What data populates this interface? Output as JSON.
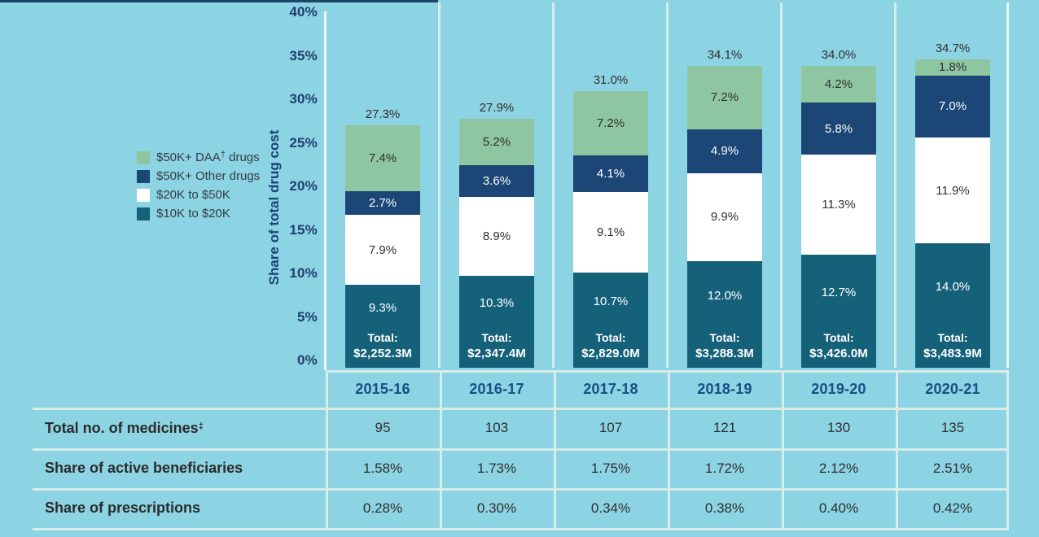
{
  "colors": {
    "background": "#8CD3E3",
    "top_strip": "#1B4566",
    "grid_line": "#D8EDEA",
    "axis_line": "#EDF6F3",
    "tick_text": "#203F6E",
    "year_text": "#175084",
    "dark_text": "#2F2F2F",
    "bar_teal": "#16617A",
    "bar_white": "#FFFFFF",
    "bar_navy": "#1B4675",
    "bar_green": "#8EC6A1"
  },
  "chart_data": {
    "type": "bar",
    "stacked": true,
    "title": "",
    "xlabel": "",
    "ylabel": "Share of total drug cost",
    "ylim": [
      0,
      40
    ],
    "grid": false,
    "legend_position": "left",
    "yticks": [
      {
        "label": "40%",
        "value": 40
      },
      {
        "label": "35%",
        "value": 35
      },
      {
        "label": "30%",
        "value": 30
      },
      {
        "label": "25%",
        "value": 25
      },
      {
        "label": "20%",
        "value": 20
      },
      {
        "label": "15%",
        "value": 15
      },
      {
        "label": "10%",
        "value": 10
      },
      {
        "label": "5%",
        "value": 5
      },
      {
        "label": "0%",
        "value": 0
      }
    ],
    "categories": [
      "2015-16",
      "2016-17",
      "2017-18",
      "2018-19",
      "2019-20",
      "2020-21"
    ],
    "series": [
      {
        "name": "$10K to $20K",
        "color": "#16617A",
        "text_color": "#FFFFFF",
        "values": [
          9.3,
          10.3,
          10.7,
          12.0,
          12.7,
          14.0
        ]
      },
      {
        "name": "$20K to $50K",
        "color": "#FFFFFF",
        "text_color": "#2F2F2F",
        "values": [
          7.9,
          8.9,
          9.1,
          9.9,
          11.3,
          11.9
        ]
      },
      {
        "name": "$50K+ Other drugs",
        "color": "#1B4675",
        "text_color": "#FFFFFF",
        "values": [
          2.7,
          3.6,
          4.1,
          4.9,
          5.8,
          7.0
        ]
      },
      {
        "name": "$50K+ DAA† drugs",
        "color": "#8EC6A1",
        "text_color": "#2F2F2F",
        "values": [
          7.4,
          5.2,
          7.2,
          7.2,
          4.2,
          1.8
        ]
      }
    ],
    "totals_above_bars": [
      "27.3%",
      "27.9%",
      "31.0%",
      "34.1%",
      "34.0%",
      "34.7%"
    ],
    "total_prefix": "Total:",
    "totals_dollar": [
      "$2,252.3M",
      "$2,347.4M",
      "$2,829.0M",
      "$3,288.3M",
      "$3,426.0M",
      "$3,483.9M"
    ]
  },
  "legend": {
    "items": [
      {
        "pre": "$50K+ DAA",
        "sup": "†",
        "post": " drugs",
        "color": "#8EC6A1"
      },
      {
        "pre": "$50K+ Other drugs",
        "sup": "",
        "post": "",
        "color": "#1B4675"
      },
      {
        "pre": "$20K to $50K",
        "sup": "",
        "post": "",
        "color": "#FFFFFF"
      },
      {
        "pre": "$10K to $20K",
        "sup": "",
        "post": "",
        "color": "#16617A"
      }
    ]
  },
  "table": {
    "rows": [
      {
        "label": "Total no. of medicines",
        "label_sup": "‡",
        "values": [
          "95",
          "103",
          "107",
          "121",
          "130",
          "135"
        ]
      },
      {
        "label": "Share of active beneficiaries",
        "label_sup": "",
        "values": [
          "1.58%",
          "1.73%",
          "1.75%",
          "1.72%",
          "2.12%",
          "2.51%"
        ]
      },
      {
        "label": "Share of prescriptions",
        "label_sup": "",
        "values": [
          "0.28%",
          "0.30%",
          "0.34%",
          "0.38%",
          "0.40%",
          "0.42%"
        ]
      }
    ]
  }
}
